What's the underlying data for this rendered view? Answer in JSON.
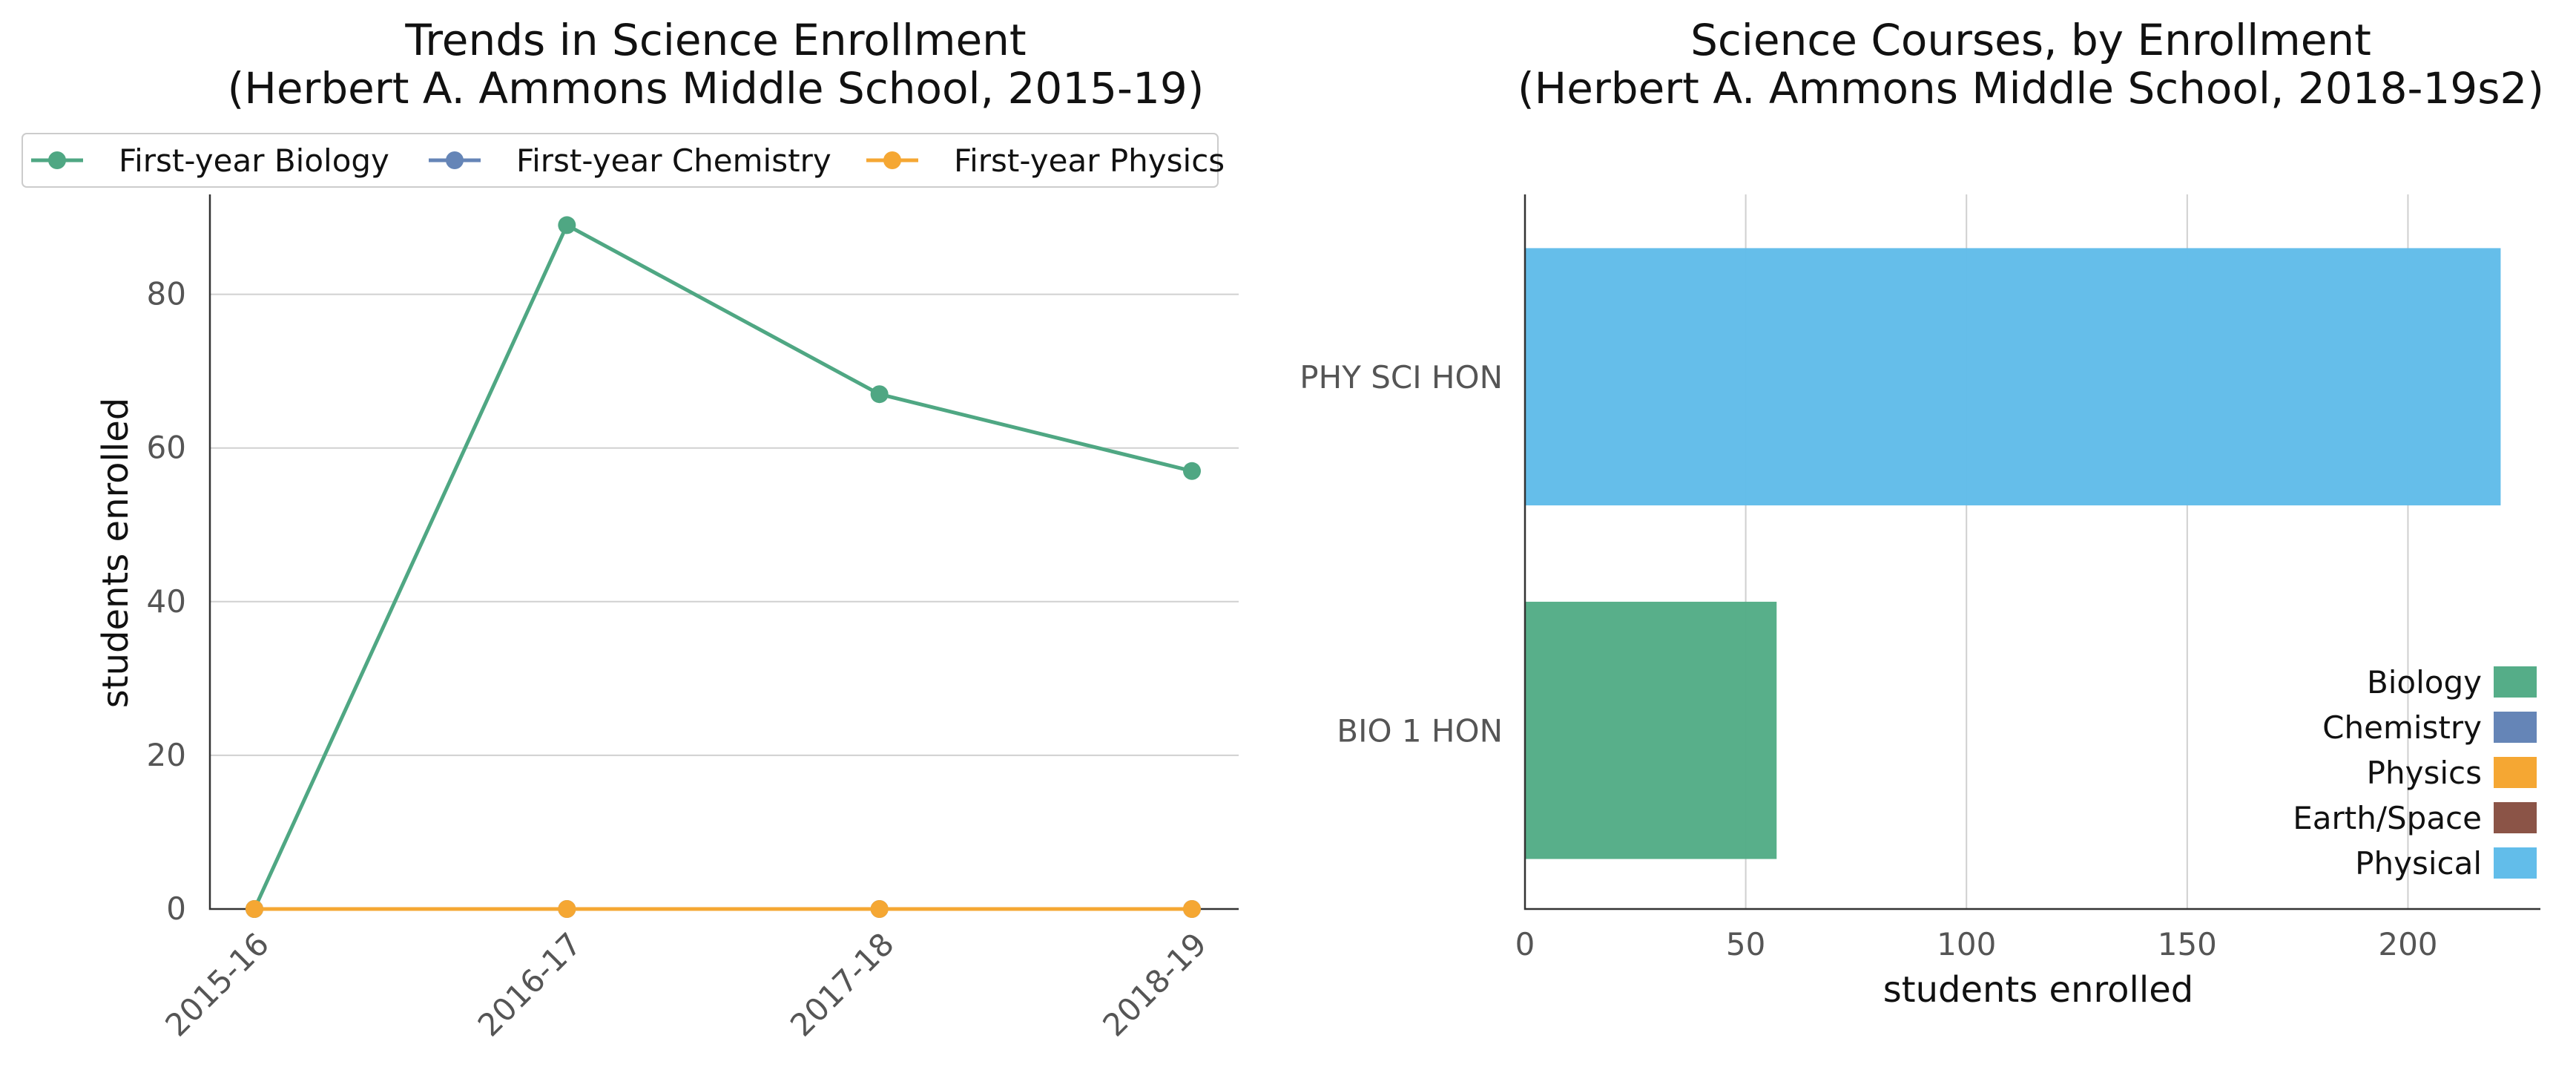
{
  "chart_data": [
    {
      "type": "line",
      "title_line1": "Trends in Science Enrollment",
      "title_line2": "(Herbert A. Ammons Middle School, 2015-19)",
      "ylabel": "students enrolled",
      "xlabel": "",
      "categories": [
        "2015-16",
        "2016-17",
        "2017-18",
        "2018-19"
      ],
      "ylim": [
        0,
        93
      ],
      "yticks": [
        0,
        20,
        40,
        60,
        80
      ],
      "grid": "horizontal",
      "legend_position": "top",
      "series": [
        {
          "name": "First-year Biology",
          "color": "#4fa783",
          "values": [
            0,
            89,
            67,
            57
          ]
        },
        {
          "name": "First-year Chemistry",
          "color": "#6585b7",
          "values": [
            0,
            0,
            0,
            0
          ]
        },
        {
          "name": "First-year Physics",
          "color": "#f5a733",
          "values": [
            0,
            0,
            0,
            0
          ]
        }
      ]
    },
    {
      "type": "bar",
      "orientation": "horizontal",
      "title_line1": "Science Courses, by Enrollment",
      "title_line2": "(Herbert A. Ammons Middle School, 2018-19s2)",
      "xlabel": "students enrolled",
      "ylabel": "",
      "categories": [
        "PHY SCI HON",
        "BIO 1 HON"
      ],
      "values": [
        221,
        57
      ],
      "bar_colors": [
        "#62bdea",
        "#55ad88"
      ],
      "xlim": [
        0,
        230
      ],
      "xticks": [
        0,
        50,
        100,
        150,
        200
      ],
      "grid": "vertical",
      "legend_position": "lower-right",
      "legend": [
        {
          "label": "Biology",
          "color": "#55ad88"
        },
        {
          "label": "Chemistry",
          "color": "#6585b7"
        },
        {
          "label": "Physics",
          "color": "#f5a733"
        },
        {
          "label": "Earth/Space",
          "color": "#8b5447"
        },
        {
          "label": "Physical",
          "color": "#62bdea"
        }
      ]
    }
  ]
}
